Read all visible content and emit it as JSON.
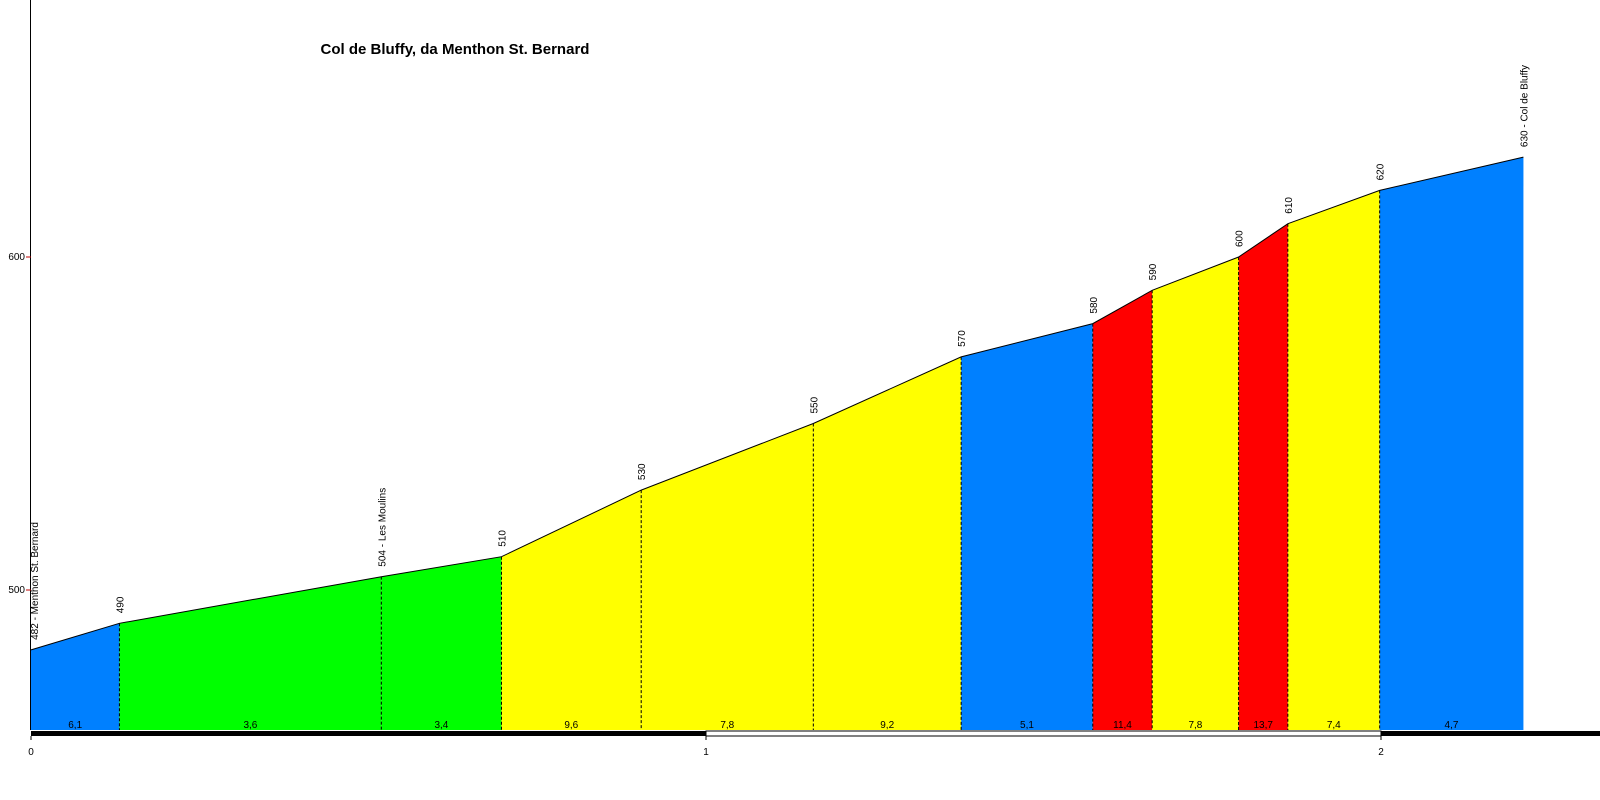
{
  "chart_data": {
    "type": "area",
    "title": "Col de Bluffy, da Menthon St. Bernard",
    "xlabel": "",
    "ylabel": "",
    "xlim": [
      0,
      2.35
    ],
    "ylim": [
      458,
      678
    ],
    "x_ticks": [
      0,
      1,
      2
    ],
    "x_tick_labels": [
      "0",
      "1",
      "2"
    ],
    "y_ticks": [
      500,
      600
    ],
    "y_tick_labels": [
      "500",
      "600"
    ],
    "grid": false,
    "profile": [
      {
        "x": 0.0,
        "y": 482,
        "label": "482 - Menthon St. Bernard"
      },
      {
        "x": 0.131,
        "y": 490,
        "label": "490"
      },
      {
        "x": 0.519,
        "y": 504,
        "label": "504 - Les Moulins"
      },
      {
        "x": 0.697,
        "y": 510,
        "label": "510"
      },
      {
        "x": 0.904,
        "y": 530,
        "label": "530"
      },
      {
        "x": 1.159,
        "y": 550,
        "label": "550"
      },
      {
        "x": 1.378,
        "y": 570,
        "label": "570"
      },
      {
        "x": 1.573,
        "y": 580,
        "label": "580"
      },
      {
        "x": 1.661,
        "y": 590,
        "label": "590"
      },
      {
        "x": 1.789,
        "y": 600,
        "label": "600"
      },
      {
        "x": 1.862,
        "y": 610,
        "label": "610"
      },
      {
        "x": 1.998,
        "y": 620,
        "label": "620"
      },
      {
        "x": 2.211,
        "y": 630,
        "label": "630 - Col de Bluffy"
      }
    ],
    "segments": [
      {
        "grade": "6,1",
        "color": "#0080FF"
      },
      {
        "grade": "3,6",
        "color": "#00FF00"
      },
      {
        "grade": "3,4",
        "color": "#00FF00"
      },
      {
        "grade": "9,6",
        "color": "#FFFF00"
      },
      {
        "grade": "7,8",
        "color": "#FFFF00"
      },
      {
        "grade": "9,2",
        "color": "#FFFF00"
      },
      {
        "grade": "5,1",
        "color": "#0080FF"
      },
      {
        "grade": "11,4",
        "color": "#FF0000"
      },
      {
        "grade": "7,8",
        "color": "#FFFF00"
      },
      {
        "grade": "13,7",
        "color": "#FF0000"
      },
      {
        "grade": "7,4",
        "color": "#FFFF00"
      },
      {
        "grade": "4,7",
        "color": "#0080FF"
      }
    ]
  }
}
